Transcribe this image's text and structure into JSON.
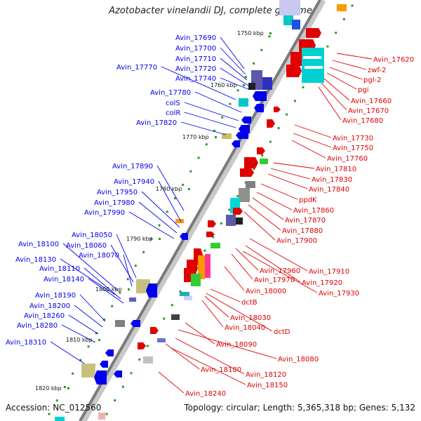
{
  "title": "Azotobacter vinelandii DJ, complete genome",
  "footer": {
    "accession": "Accession: NC_012560",
    "summary": "Topology: circular; Length: 5,365,318 bp; Genes: 5,132"
  },
  "colors": {
    "left_label": "#0000ee",
    "right_label": "#e00000",
    "backbone": "#7a7a7a"
  },
  "ticks": [
    "1750 kbp",
    "1760 kbp",
    "1770 kbp",
    "1780 kbp",
    "1790 kbp",
    "1800 kbp",
    "1810 kbp",
    "1820 kbp"
  ],
  "left_labels": [
    "Avin_17690",
    "Avin_17700",
    "Avin_17710",
    "Avin_17720",
    "Avin_17740",
    "Avin_17770",
    "Avin_17780",
    "colS",
    "colR",
    "Avin_17820",
    "Avin_17890",
    "Avin_17940",
    "Avin_17950",
    "Avin_17980",
    "Avin_17990",
    "Avin_18050",
    "Avin_18060",
    "Avin_18070",
    "Avin_18100",
    "Avin_18130",
    "Avin_18110",
    "Avin_18140",
    "Avin_18190",
    "Avin_18200",
    "Avin_18260",
    "Avin_18280",
    "Avin_18310"
  ],
  "right_labels": [
    "Avin_17620",
    "zwf-2",
    "pgl-2",
    "pgi",
    "Avin_17660",
    "Avin_17670",
    "Avin_17680",
    "Avin_17730",
    "Avin_17750",
    "Avin_17760",
    "Avin_17810",
    "Avin_17830",
    "Avin_17840",
    "ppdK",
    "Avin_17860",
    "Avin_17870",
    "Avin_17880",
    "Avin_17900",
    "Avin_17910",
    "Avin_17960",
    "Avin_17970",
    "Avin_17920",
    "Avin_18000",
    "Avin_17930",
    "dctB",
    "Avin_18030",
    "Avin_18040",
    "dctD",
    "Avin_18090",
    "Avin_18080",
    "Avin_18120",
    "Avin_18180",
    "Avin_18150",
    "Avin_18240"
  ]
}
